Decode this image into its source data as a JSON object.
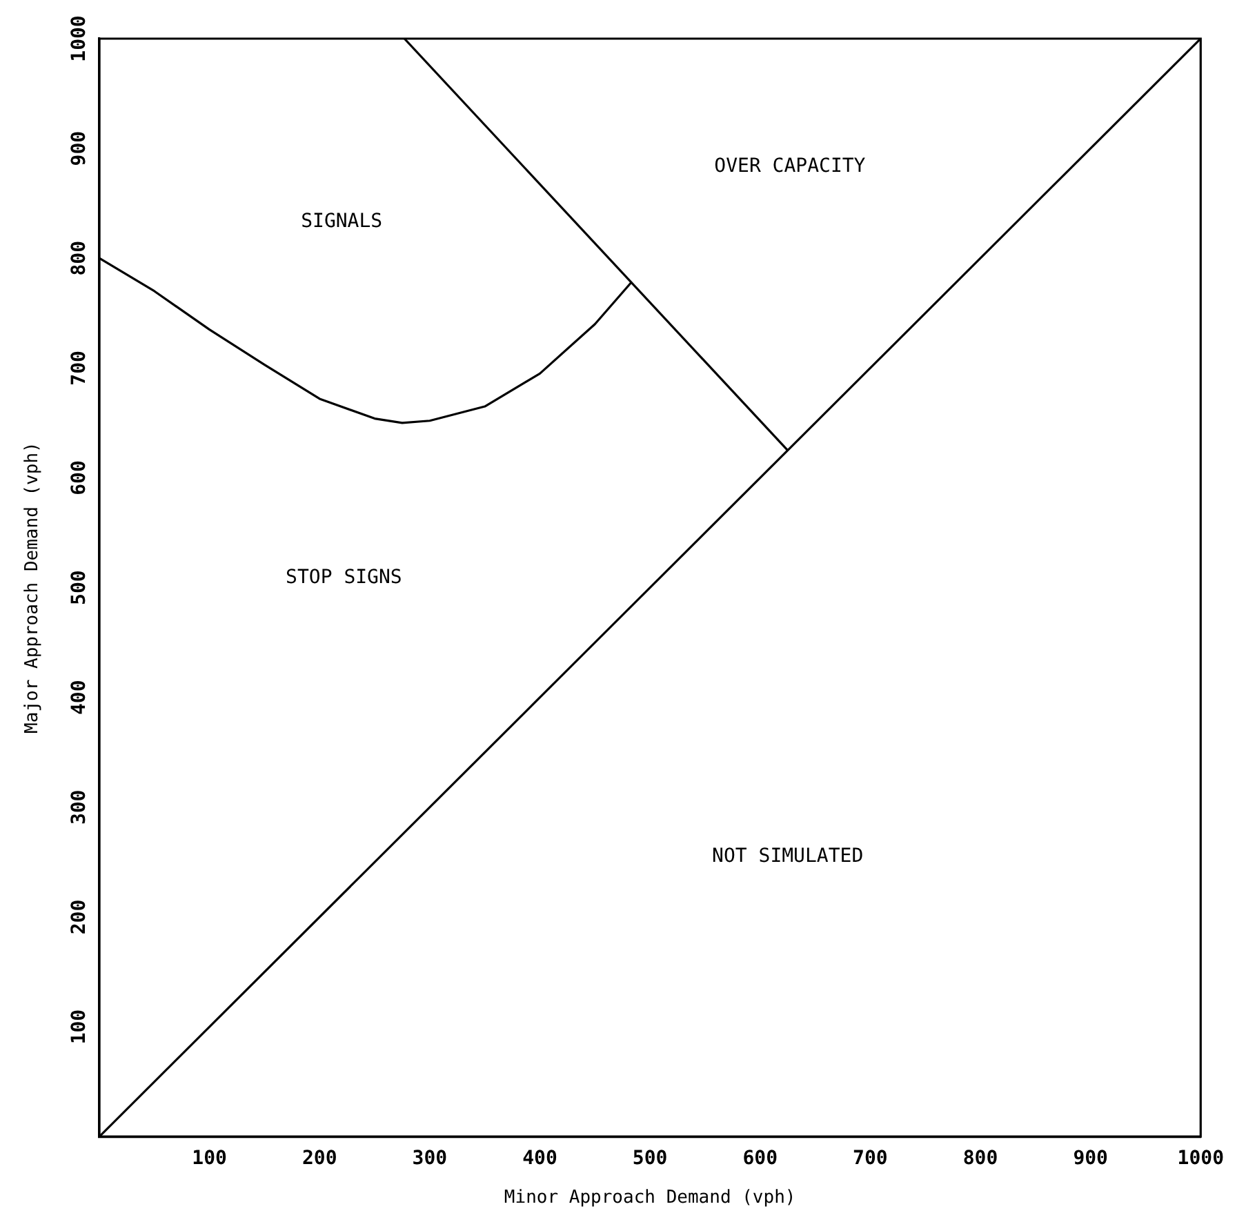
{
  "chart_data": {
    "type": "line",
    "xlabel": "Minor Approach Demand (vph)",
    "ylabel": "Major Approach Demand (vph)",
    "xlim": [
      0,
      1000
    ],
    "ylim": [
      0,
      1000
    ],
    "xticks": [
      100,
      200,
      300,
      400,
      500,
      600,
      700,
      800,
      900,
      1000
    ],
    "yticks": [
      100,
      200,
      300,
      400,
      500,
      600,
      700,
      800,
      900,
      1000
    ],
    "grid": false,
    "legend": false,
    "marker": "none",
    "line_style": "solid",
    "series": [
      {
        "color": "#000000",
        "x": [
          0,
          1000
        ],
        "values": [
          0,
          1000
        ]
      },
      {
        "color": "#000000",
        "x": [
          277,
          625
        ],
        "values": [
          1000,
          625
        ]
      },
      {
        "color": "#000000",
        "x": [
          0,
          50,
          100,
          150,
          200,
          250,
          275,
          300,
          350,
          400,
          450,
          483
        ],
        "values": [
          800,
          770,
          735,
          703,
          672,
          654,
          650,
          652,
          665,
          695,
          740,
          778
        ]
      }
    ],
    "annotations": [
      "SIGNALS",
      "OVER CAPACITY",
      "STOP SIGNS",
      "NOT SIMULATED"
    ]
  }
}
